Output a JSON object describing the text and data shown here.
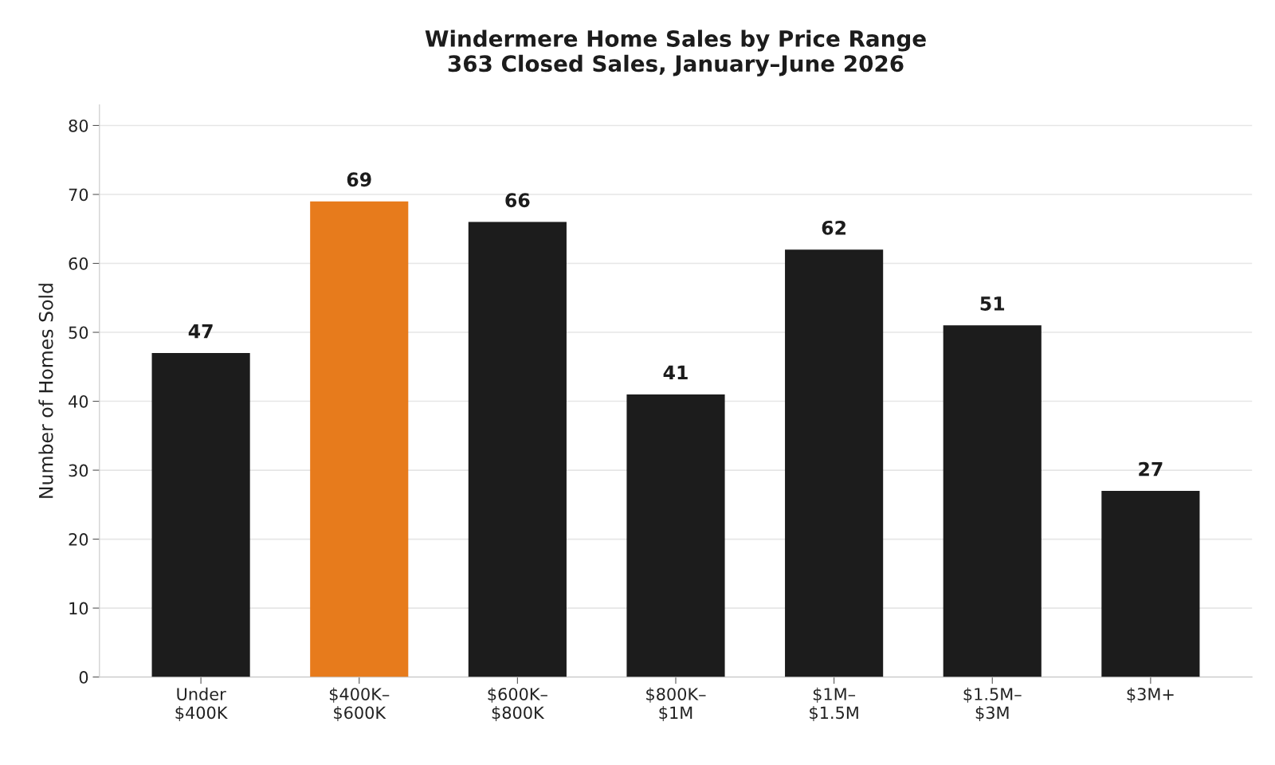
{
  "chart_data": {
    "type": "bar",
    "title": "Windermere Home Sales by Price Range\n363 Closed Sales, January–June 2026",
    "categories": [
      "Under\n$400K",
      "$400K–\n$600K",
      "$600K–\n$800K",
      "$800K–\n$1M",
      "$1M–\n$1.5M",
      "$1.5M–\n$3M",
      "$3M+"
    ],
    "values": [
      47,
      69,
      66,
      41,
      62,
      51,
      27
    ],
    "colors": [
      "#1c1c1c",
      "#e77b1c",
      "#1c1c1c",
      "#1c1c1c",
      "#1c1c1c",
      "#1c1c1c",
      "#1c1c1c"
    ],
    "ylabel": "Number of Homes Sold",
    "ylim": [
      0,
      83
    ],
    "yticks": [
      0,
      10,
      20,
      30,
      40,
      50,
      60,
      70,
      80
    ],
    "grid": "y",
    "data_labels": true
  }
}
